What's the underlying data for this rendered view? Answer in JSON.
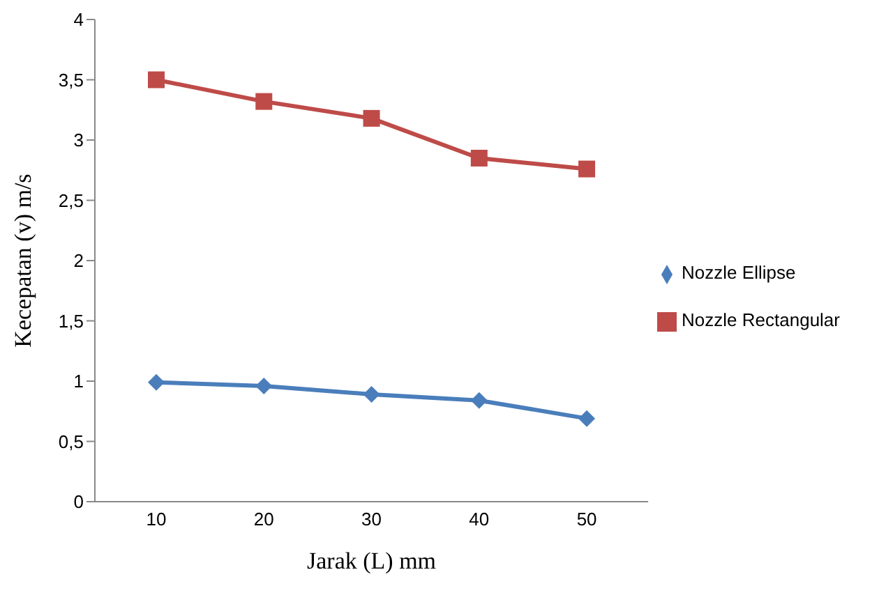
{
  "chart_data": {
    "type": "line",
    "xlabel": "Jarak (L) mm",
    "ylabel": "Kecepatan (v)  m/s",
    "categories": [
      "10",
      "20",
      "30",
      "40",
      "50"
    ],
    "series": [
      {
        "name": "Nozzle Ellipse",
        "color": "#4a7ebb",
        "marker": "diamond",
        "values": [
          0.99,
          0.96,
          0.89,
          0.84,
          0.69
        ]
      },
      {
        "name": "Nozzle Rectangular",
        "color": "#be4b48",
        "marker": "square",
        "values": [
          3.5,
          3.32,
          3.18,
          2.85,
          2.76
        ]
      }
    ],
    "ylim": [
      0,
      4
    ],
    "yticks": [
      0,
      {
        "value": 0.5,
        "label": "0,5"
      },
      1,
      {
        "value": 1.5,
        "label": "1,5"
      },
      2,
      {
        "value": 2.5,
        "label": "2,5"
      },
      3,
      {
        "value": 3.5,
        "label": "3,5"
      },
      4
    ],
    "grid": false,
    "legend": "right",
    "line_style": "solid"
  }
}
